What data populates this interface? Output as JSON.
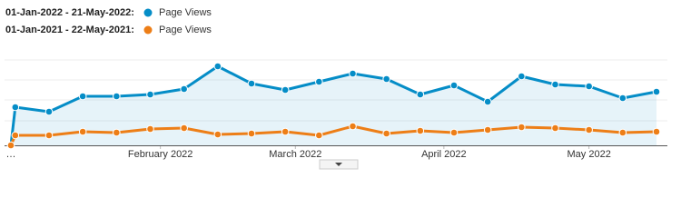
{
  "chart_data": {
    "type": "line",
    "x": [
      -0.13,
      0,
      1,
      2,
      3,
      4,
      5,
      6,
      7,
      8,
      9,
      10,
      11,
      12,
      13,
      14,
      15,
      16,
      17,
      18,
      19
    ],
    "xlim": [
      -0.13,
      19
    ],
    "xticks": [
      {
        "value": -0.13,
        "label": "…"
      },
      {
        "value": 4.3,
        "label": "February 2022"
      },
      {
        "value": 8.3,
        "label": "March 2022"
      },
      {
        "value": 12.7,
        "label": "April 2022"
      },
      {
        "value": 17.0,
        "label": "May 2022"
      }
    ],
    "ylim": [
      0,
      110
    ],
    "series": [
      {
        "label": "01-Jan-2022 - 21-May-2022:",
        "name": "Page Views",
        "color": "#058dc7",
        "area": true,
        "values": [
          0,
          42,
          37,
          54,
          54,
          56,
          62,
          87,
          68,
          61,
          70,
          79,
          73,
          56,
          66,
          48,
          76,
          67,
          65,
          52,
          59
        ]
      },
      {
        "label": "01-Jan-2021 - 22-May-2021:",
        "name": "Page Views",
        "color": "#ed7e17",
        "area": false,
        "values": [
          0,
          11,
          11,
          15,
          14,
          18,
          19,
          12,
          13,
          15,
          11,
          21,
          13,
          16,
          14,
          17,
          20,
          19,
          17,
          14,
          15
        ]
      }
    ]
  }
}
